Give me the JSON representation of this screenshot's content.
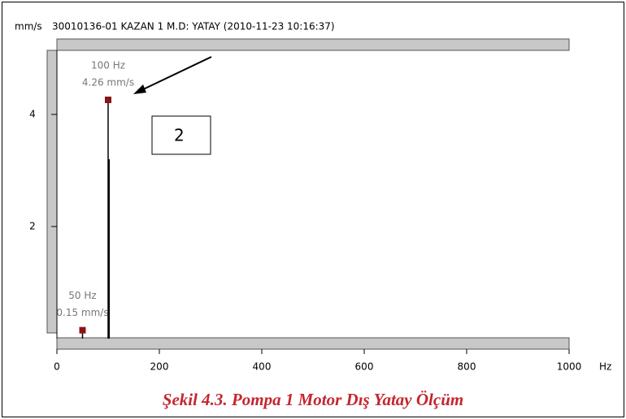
{
  "chart_data": {
    "type": "spectrum",
    "y_unit": "mm/s",
    "title": "30010136-01  KAZAN 1 M.D: YATAY (2010-11-23 10:16:37)",
    "x_label": "Hz",
    "x": [
      50,
      100,
      102
    ],
    "values": [
      0.15,
      4.26,
      3.2
    ],
    "x_labels": [
      "50 Hz",
      "100 Hz",
      null
    ],
    "value_labels": [
      "0.15 mm/s",
      "4.26 mm/s",
      null
    ],
    "marker_color": "#8b1414",
    "line_color": "#000000",
    "xlim": [
      0,
      1000
    ],
    "xticks": [
      0,
      200,
      400,
      600,
      800,
      1000
    ],
    "ylim": [
      0,
      5.1
    ],
    "yticks": [
      2,
      4
    ],
    "annotation": "2",
    "caption": "Şekil 4.3. Pompa 1 Motor Dış Yatay Ölçüm"
  }
}
